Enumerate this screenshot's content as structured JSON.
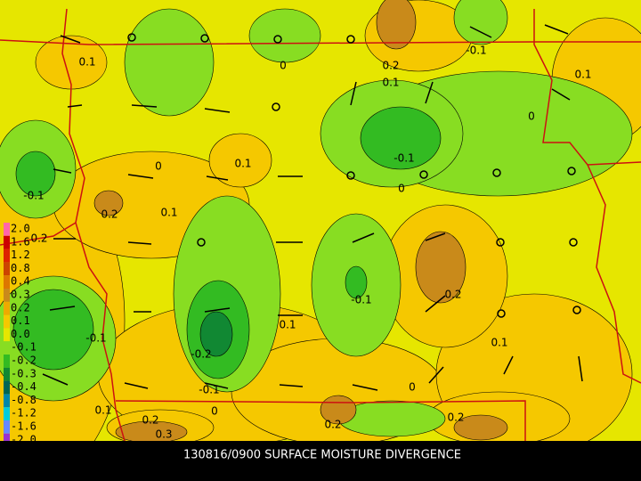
{
  "title": "130816/0900 SURFACE MOISTURE DIVERGENCE",
  "legend": [
    {
      "label": "2.0",
      "color": "#ff66aa"
    },
    {
      "label": "1.6",
      "color": "#cc0000"
    },
    {
      "label": "1.2",
      "color": "#dd2200"
    },
    {
      "label": "0.8",
      "color": "#cc4400"
    },
    {
      "label": "0.4",
      "color": "#dd7700"
    },
    {
      "label": "0.3",
      "color": "#c98a1a"
    },
    {
      "label": "0.2",
      "color": "#eeaa00"
    },
    {
      "label": "0.1",
      "color": "#f5c800"
    },
    {
      "label": "0.0",
      "color": "#e6e600"
    },
    {
      "label": "-0.1",
      "color": "#88dd22"
    },
    {
      "label": "-0.2",
      "color": "#33bb22"
    },
    {
      "label": "-0.3",
      "color": "#118833"
    },
    {
      "label": "-0.4",
      "color": "#006655"
    },
    {
      "label": "-0.8",
      "color": "#0088aa"
    },
    {
      "label": "-1.2",
      "color": "#00ccdd"
    },
    {
      "label": "-1.6",
      "color": "#6688ff"
    },
    {
      "label": "-2.0",
      "color": "#9933cc"
    }
  ],
  "contour_labels": [
    "0.1",
    "0",
    "0.2",
    "-0.1",
    "0.1",
    "0.1",
    "0",
    "0.1",
    "0",
    "-0.1",
    "0",
    "-0.1",
    "0.2",
    "0.1",
    "0.2",
    "-0.1",
    "0.2",
    "-0.1",
    "0.1",
    "0.1",
    "-0.2",
    "-0.1",
    "0",
    "0.1",
    "0",
    "0.2",
    "0.2",
    "0.2",
    "0.3"
  ]
}
